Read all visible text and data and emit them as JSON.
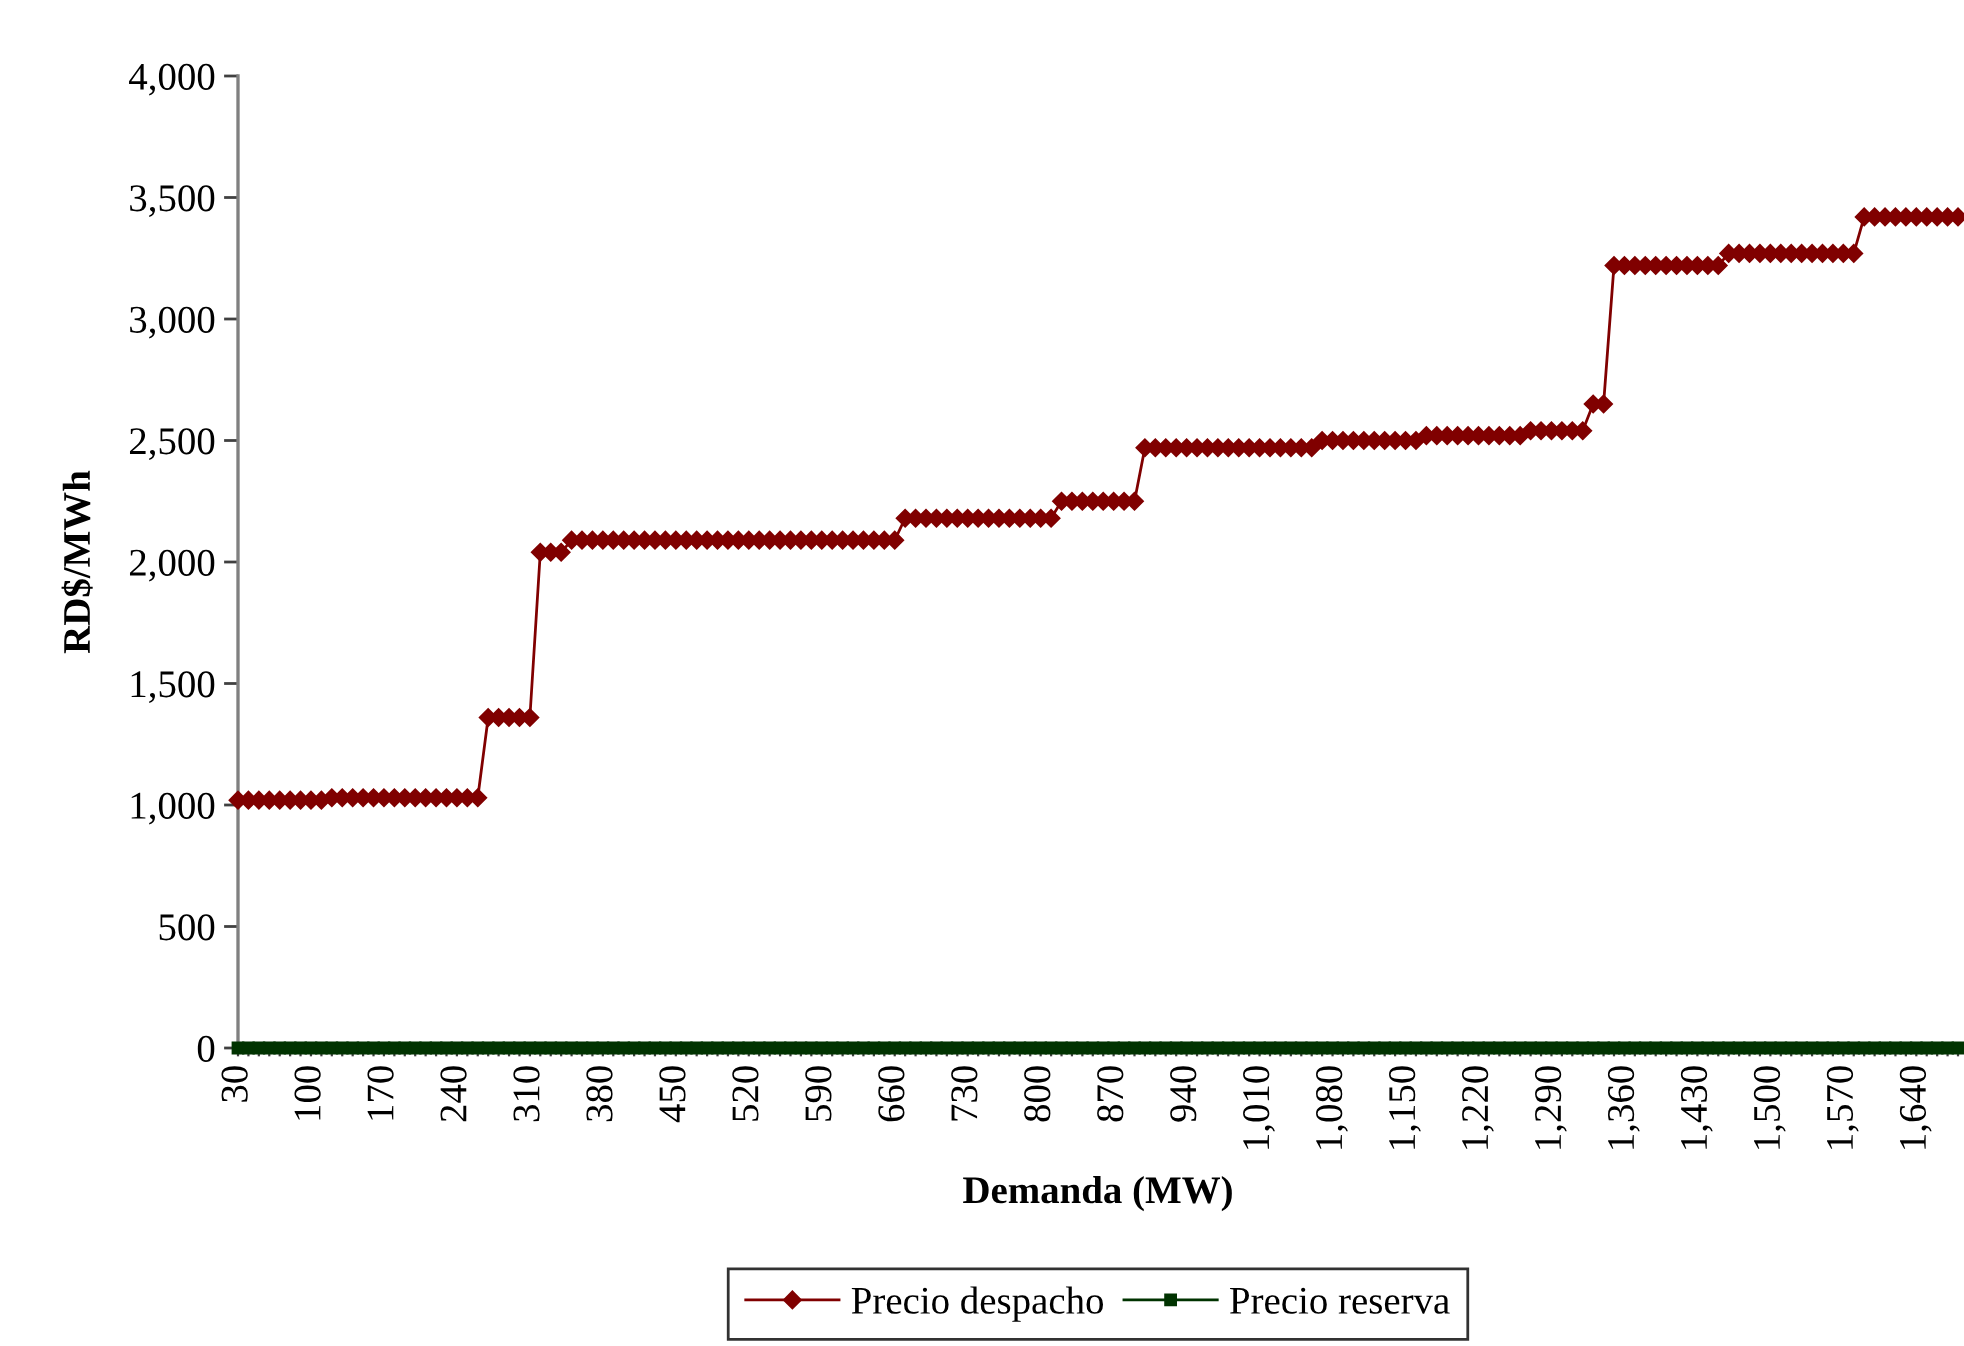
{
  "chart_data": {
    "type": "line",
    "xlabel": "Demanda (MW)",
    "ylabel": "RD$/MWh",
    "categories": [
      "30",
      null,
      null,
      null,
      null,
      null,
      null,
      "100",
      null,
      null,
      null,
      null,
      null,
      null,
      "170",
      null,
      null,
      null,
      null,
      null,
      null,
      "240",
      null,
      null,
      null,
      null,
      null,
      null,
      "310",
      null,
      null,
      null,
      null,
      null,
      null,
      "380",
      null,
      null,
      null,
      null,
      null,
      null,
      "450",
      null,
      null,
      null,
      null,
      null,
      null,
      "520",
      null,
      null,
      null,
      null,
      null,
      null,
      "590",
      null,
      null,
      null,
      null,
      null,
      null,
      "660",
      null,
      null,
      null,
      null,
      null,
      null,
      "730",
      null,
      null,
      null,
      null,
      null,
      null,
      "800",
      null,
      null,
      null,
      null,
      null,
      null,
      "870",
      null,
      null,
      null,
      null,
      null,
      null,
      "940",
      null,
      null,
      null,
      null,
      null,
      null,
      "1,010",
      null,
      null,
      null,
      null,
      null,
      null,
      "1,080",
      null,
      null,
      null,
      null,
      null,
      null,
      "1,150",
      null,
      null,
      null,
      null,
      null,
      null,
      "1,220",
      null,
      null,
      null,
      null,
      null,
      null,
      "1,290",
      null,
      null,
      null,
      null,
      null,
      null,
      "1,360",
      null,
      null,
      null,
      null,
      null,
      null,
      "1,430",
      null,
      null,
      null,
      null,
      null,
      null,
      "1,500",
      null,
      null,
      null,
      null,
      null,
      null,
      "1,570",
      null,
      null,
      null,
      null,
      null,
      null,
      "1,640",
      null,
      null,
      null,
      null
    ],
    "series": [
      {
        "name": "Precio despacho",
        "color": "#800000",
        "marker": "diamond",
        "values": [
          1020,
          1020,
          1020,
          1020,
          1020,
          1020,
          1020,
          1020,
          1020,
          1030,
          1030,
          1030,
          1030,
          1030,
          1030,
          1030,
          1030,
          1030,
          1030,
          1030,
          1030,
          1030,
          1030,
          1030,
          1360,
          1360,
          1360,
          1360,
          1360,
          2040,
          2040,
          2040,
          2090,
          2090,
          2090,
          2090,
          2090,
          2090,
          2090,
          2090,
          2090,
          2090,
          2090,
          2090,
          2090,
          2090,
          2090,
          2090,
          2090,
          2090,
          2090,
          2090,
          2090,
          2090,
          2090,
          2090,
          2090,
          2090,
          2090,
          2090,
          2090,
          2090,
          2090,
          2090,
          2180,
          2180,
          2180,
          2180,
          2180,
          2180,
          2180,
          2180,
          2180,
          2180,
          2180,
          2180,
          2180,
          2180,
          2180,
          2250,
          2250,
          2250,
          2250,
          2250,
          2250,
          2250,
          2250,
          2470,
          2470,
          2470,
          2470,
          2470,
          2470,
          2470,
          2470,
          2470,
          2470,
          2470,
          2470,
          2470,
          2470,
          2470,
          2470,
          2470,
          2500,
          2500,
          2500,
          2500,
          2500,
          2500,
          2500,
          2500,
          2500,
          2500,
          2520,
          2520,
          2520,
          2520,
          2520,
          2520,
          2520,
          2520,
          2520,
          2520,
          2540,
          2540,
          2540,
          2540,
          2540,
          2540,
          2650,
          2650,
          3220,
          3220,
          3220,
          3220,
          3220,
          3220,
          3220,
          3220,
          3220,
          3220,
          3220,
          3270,
          3270,
          3270,
          3270,
          3270,
          3270,
          3270,
          3270,
          3270,
          3270,
          3270,
          3270,
          3270,
          3420,
          3420,
          3420,
          3420,
          3420,
          3420,
          3420,
          3420,
          3420,
          3420
        ]
      },
      {
        "name": "Precio reserva",
        "color": "#003300",
        "marker": "square",
        "values": [
          0,
          0,
          0,
          0,
          0,
          0,
          0,
          0,
          0,
          0,
          0,
          0,
          0,
          0,
          0,
          0,
          0,
          0,
          0,
          0,
          0,
          0,
          0,
          0,
          0,
          0,
          0,
          0,
          0,
          0,
          0,
          0,
          0,
          0,
          0,
          0,
          0,
          0,
          0,
          0,
          0,
          0,
          0,
          0,
          0,
          0,
          0,
          0,
          0,
          0,
          0,
          0,
          0,
          0,
          0,
          0,
          0,
          0,
          0,
          0,
          0,
          0,
          0,
          0,
          0,
          0,
          0,
          0,
          0,
          0,
          0,
          0,
          0,
          0,
          0,
          0,
          0,
          0,
          0,
          0,
          0,
          0,
          0,
          0,
          0,
          0,
          0,
          0,
          0,
          0,
          0,
          0,
          0,
          0,
          0,
          0,
          0,
          0,
          0,
          0,
          0,
          0,
          0,
          0,
          0,
          0,
          0,
          0,
          0,
          0,
          0,
          0,
          0,
          0,
          0,
          0,
          0,
          0,
          0,
          0,
          0,
          0,
          0,
          0,
          0,
          0,
          0,
          0,
          0,
          0,
          0,
          0,
          0,
          0,
          0,
          0,
          0,
          0,
          0,
          0,
          0,
          0,
          0,
          0,
          0,
          0,
          0,
          0,
          0,
          0,
          0,
          0,
          0,
          0,
          0,
          0,
          0,
          0,
          0,
          0,
          0,
          0,
          0,
          0,
          0,
          0
        ]
      }
    ],
    "ylim": [
      0,
      4000
    ],
    "yticks": [
      0,
      500,
      {
        "value": 1000,
        "label": "1,000"
      },
      {
        "value": 1500,
        "label": "1,500"
      },
      {
        "value": 2000,
        "label": "2,000"
      },
      {
        "value": 2500,
        "label": "2,500"
      },
      {
        "value": 3000,
        "label": "3,000"
      },
      {
        "value": 3500,
        "label": "3,500"
      },
      {
        "value": 4000,
        "label": "4,000"
      }
    ],
    "legend": "bottom",
    "line_style": "solid"
  }
}
